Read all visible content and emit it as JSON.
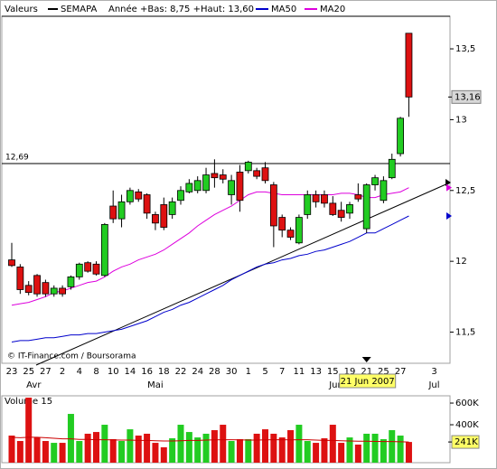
{
  "chart_data": {
    "type": "candlestick",
    "title": "Valeurs",
    "instrument": "SEMAPA",
    "subtitle": "Année +Bas: 8,75 +Haut: 13,60",
    "instrument_color": "#000000",
    "up_color": "#22cc22",
    "down_color": "#dd1111",
    "categories": [
      "23",
      null,
      "25",
      null,
      "27",
      null,
      "2",
      null,
      "4",
      null,
      "8",
      null,
      "10",
      null,
      "14",
      null,
      "16",
      null,
      "18",
      null,
      "22",
      null,
      "24",
      null,
      "28",
      null,
      "30",
      null,
      "1",
      null,
      "5",
      null,
      "7",
      null,
      "11",
      null,
      "13",
      null,
      "15",
      null,
      "19",
      null,
      "21",
      null,
      "25",
      null,
      "27",
      null,
      null,
      null,
      "3"
    ],
    "months": [
      "Avr",
      "Mai",
      "Jun",
      "Jul"
    ],
    "open": [
      12.01,
      11.96,
      11.83,
      11.9,
      11.85,
      11.77,
      11.81,
      11.82,
      11.89,
      11.99,
      11.98,
      11.9,
      12.39,
      12.3,
      12.42,
      12.49,
      12.47,
      12.33,
      12.4,
      12.33,
      12.43,
      12.49,
      12.5,
      12.5,
      12.62,
      12.61,
      12.47,
      12.63,
      12.64,
      12.64,
      12.66,
      12.54,
      12.31,
      12.22,
      12.13,
      12.33,
      12.47,
      12.47,
      12.41,
      12.36,
      12.34,
      12.47,
      12.23,
      12.54,
      12.43,
      12.59,
      12.76,
      13.61,
      null,
      null,
      null
    ],
    "high": [
      12.13,
      11.98,
      11.86,
      11.91,
      11.87,
      11.83,
      11.83,
      11.9,
      11.99,
      12.0,
      12.0,
      12.27,
      12.5,
      12.47,
      12.52,
      12.51,
      12.48,
      12.35,
      12.45,
      12.45,
      12.53,
      12.58,
      12.6,
      12.66,
      12.72,
      12.65,
      12.61,
      12.68,
      12.71,
      12.66,
      12.7,
      12.56,
      12.33,
      12.24,
      12.33,
      12.5,
      12.5,
      12.5,
      12.46,
      12.42,
      12.42,
      12.55,
      12.55,
      12.61,
      12.6,
      12.76,
      13.02,
      13.61,
      null,
      null,
      null
    ],
    "low": [
      11.96,
      11.77,
      11.76,
      11.75,
      11.75,
      11.75,
      11.75,
      11.8,
      11.87,
      11.92,
      11.9,
      11.89,
      12.27,
      12.24,
      12.4,
      12.42,
      12.3,
      12.22,
      12.22,
      12.3,
      12.4,
      12.48,
      12.48,
      12.48,
      12.52,
      12.55,
      12.4,
      12.35,
      12.62,
      12.58,
      12.55,
      12.1,
      12.17,
      12.15,
      12.12,
      12.3,
      12.38,
      12.38,
      12.32,
      12.28,
      12.3,
      12.42,
      12.2,
      12.5,
      12.41,
      12.58,
      12.74,
      13.02,
      null,
      null,
      null
    ],
    "close": [
      11.97,
      11.8,
      11.78,
      11.77,
      11.77,
      11.81,
      11.77,
      11.89,
      11.98,
      11.93,
      11.91,
      12.26,
      12.3,
      12.42,
      12.5,
      12.44,
      12.34,
      12.27,
      12.24,
      12.42,
      12.5,
      12.55,
      12.57,
      12.61,
      12.59,
      12.58,
      12.57,
      12.43,
      12.7,
      12.6,
      12.57,
      12.25,
      12.22,
      12.17,
      12.31,
      12.47,
      12.42,
      12.41,
      12.33,
      12.31,
      12.4,
      12.44,
      12.54,
      12.59,
      12.57,
      12.72,
      13.01,
      13.16,
      null,
      null,
      null
    ],
    "series": [
      {
        "name": "MA50",
        "color": "#0000cc",
        "values": [
          11.43,
          11.44,
          11.44,
          11.45,
          11.46,
          11.46,
          11.47,
          11.48,
          11.48,
          11.49,
          11.49,
          11.5,
          11.51,
          11.52,
          11.54,
          11.56,
          11.58,
          11.61,
          11.64,
          11.66,
          11.69,
          11.71,
          11.74,
          11.77,
          11.8,
          11.83,
          11.87,
          11.9,
          11.93,
          11.96,
          11.98,
          11.99,
          12.01,
          12.02,
          12.04,
          12.05,
          12.07,
          12.08,
          12.1,
          12.12,
          12.14,
          12.17,
          12.2,
          12.2,
          12.23,
          12.26,
          12.29,
          12.32,
          null,
          null,
          null
        ]
      },
      {
        "name": "MA20",
        "color": "#dd00dd",
        "values": [
          11.69,
          11.7,
          11.71,
          11.73,
          11.75,
          11.78,
          11.79,
          11.81,
          11.83,
          11.85,
          11.86,
          11.89,
          11.93,
          11.96,
          11.98,
          12.01,
          12.03,
          12.05,
          12.08,
          12.12,
          12.16,
          12.2,
          12.25,
          12.29,
          12.33,
          12.36,
          12.39,
          12.43,
          12.47,
          12.49,
          12.49,
          12.48,
          12.47,
          12.47,
          12.47,
          12.47,
          12.47,
          12.47,
          12.47,
          12.48,
          12.48,
          12.47,
          12.45,
          12.45,
          12.47,
          12.48,
          12.49,
          12.52,
          null,
          null,
          null
        ]
      }
    ],
    "ylim": [
      11.28,
      13.73
    ],
    "yticks": [
      {
        "value": 11.5,
        "label": "11,5"
      },
      12,
      {
        "value": 12.5,
        "label": "12,5"
      },
      13,
      {
        "value": 13.5,
        "label": "13,5"
      }
    ],
    "reference_line": {
      "value": 12.69,
      "label": "12,69"
    },
    "last_price": {
      "value": 13.16,
      "label": "13,16"
    },
    "source": "© IT-Finance.com / Boursorama",
    "cursor_date": "21 Jun 2007",
    "volume": {
      "title": "Volume 15",
      "values": [
        300000,
        250000,
        650000,
        283000,
        250000,
        233000,
        233000,
        500000,
        250000,
        317000,
        333000,
        400000,
        267000,
        250000,
        358000,
        300000,
        317000,
        233000,
        192000,
        275000,
        400000,
        333000,
        283000,
        317000,
        350000,
        400000,
        250000,
        267000,
        267000,
        317000,
        358000,
        317000,
        283000,
        350000,
        400000,
        250000,
        233000,
        275000,
        400000,
        233000,
        283000,
        217000,
        317000,
        317000,
        267000,
        350000,
        300000,
        241000,
        null,
        null,
        null
      ],
      "ma_color": "#cc0000",
      "ma_values": [
        283000,
        280000,
        285000,
        285000,
        280000,
        275000,
        270000,
        270000,
        265000,
        265000,
        262000,
        262000,
        260000,
        258000,
        258000,
        255000,
        255000,
        252000,
        250000,
        250000,
        252000,
        255000,
        255000,
        258000,
        260000,
        262000,
        262000,
        260000,
        258000,
        258000,
        260000,
        262000,
        262000,
        260000,
        262000,
        262000,
        258000,
        255000,
        255000,
        252000,
        250000,
        248000,
        248000,
        246000,
        245000,
        245000,
        243000,
        241000,
        null,
        null,
        null
      ],
      "ylim": [
        50000,
        667000
      ],
      "yticks": [
        {
          "value": 400000,
          "label": "400K"
        },
        {
          "value": 600000,
          "label": "600K"
        }
      ],
      "last": {
        "value": 241000,
        "label": "241K"
      }
    }
  }
}
